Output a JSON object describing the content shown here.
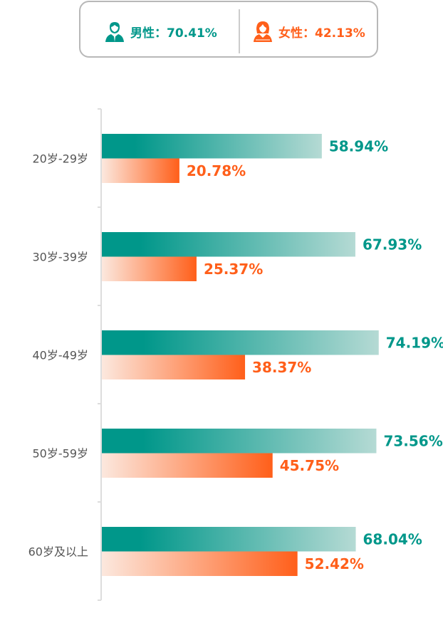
{
  "legend": {
    "male": {
      "label": "男性：70.41%",
      "icon": "male-user-icon",
      "color": "#00978A"
    },
    "female": {
      "label": "女性：42.13%",
      "icon": "female-user-icon",
      "color": "#FF5F1A"
    }
  },
  "chart_data": {
    "type": "bar",
    "orientation": "horizontal",
    "categories": [
      "20岁-29岁",
      "30岁-39岁",
      "40岁-49岁",
      "50岁-59岁",
      "60岁及以上"
    ],
    "series": [
      {
        "name": "男性",
        "color": "#00978A",
        "values": [
          58.94,
          67.93,
          74.19,
          73.56,
          68.04
        ],
        "labels": [
          "58.94%",
          "67.93%",
          "74.19%",
          "73.56%",
          "68.04%"
        ]
      },
      {
        "name": "女性",
        "color": "#FF5F1A",
        "values": [
          20.78,
          25.37,
          38.37,
          45.75,
          52.42
        ],
        "labels": [
          "20.78%",
          "25.37%",
          "38.37%",
          "45.75%",
          "52.42%"
        ]
      }
    ],
    "xlim": [
      0,
      100
    ],
    "grid": false
  }
}
